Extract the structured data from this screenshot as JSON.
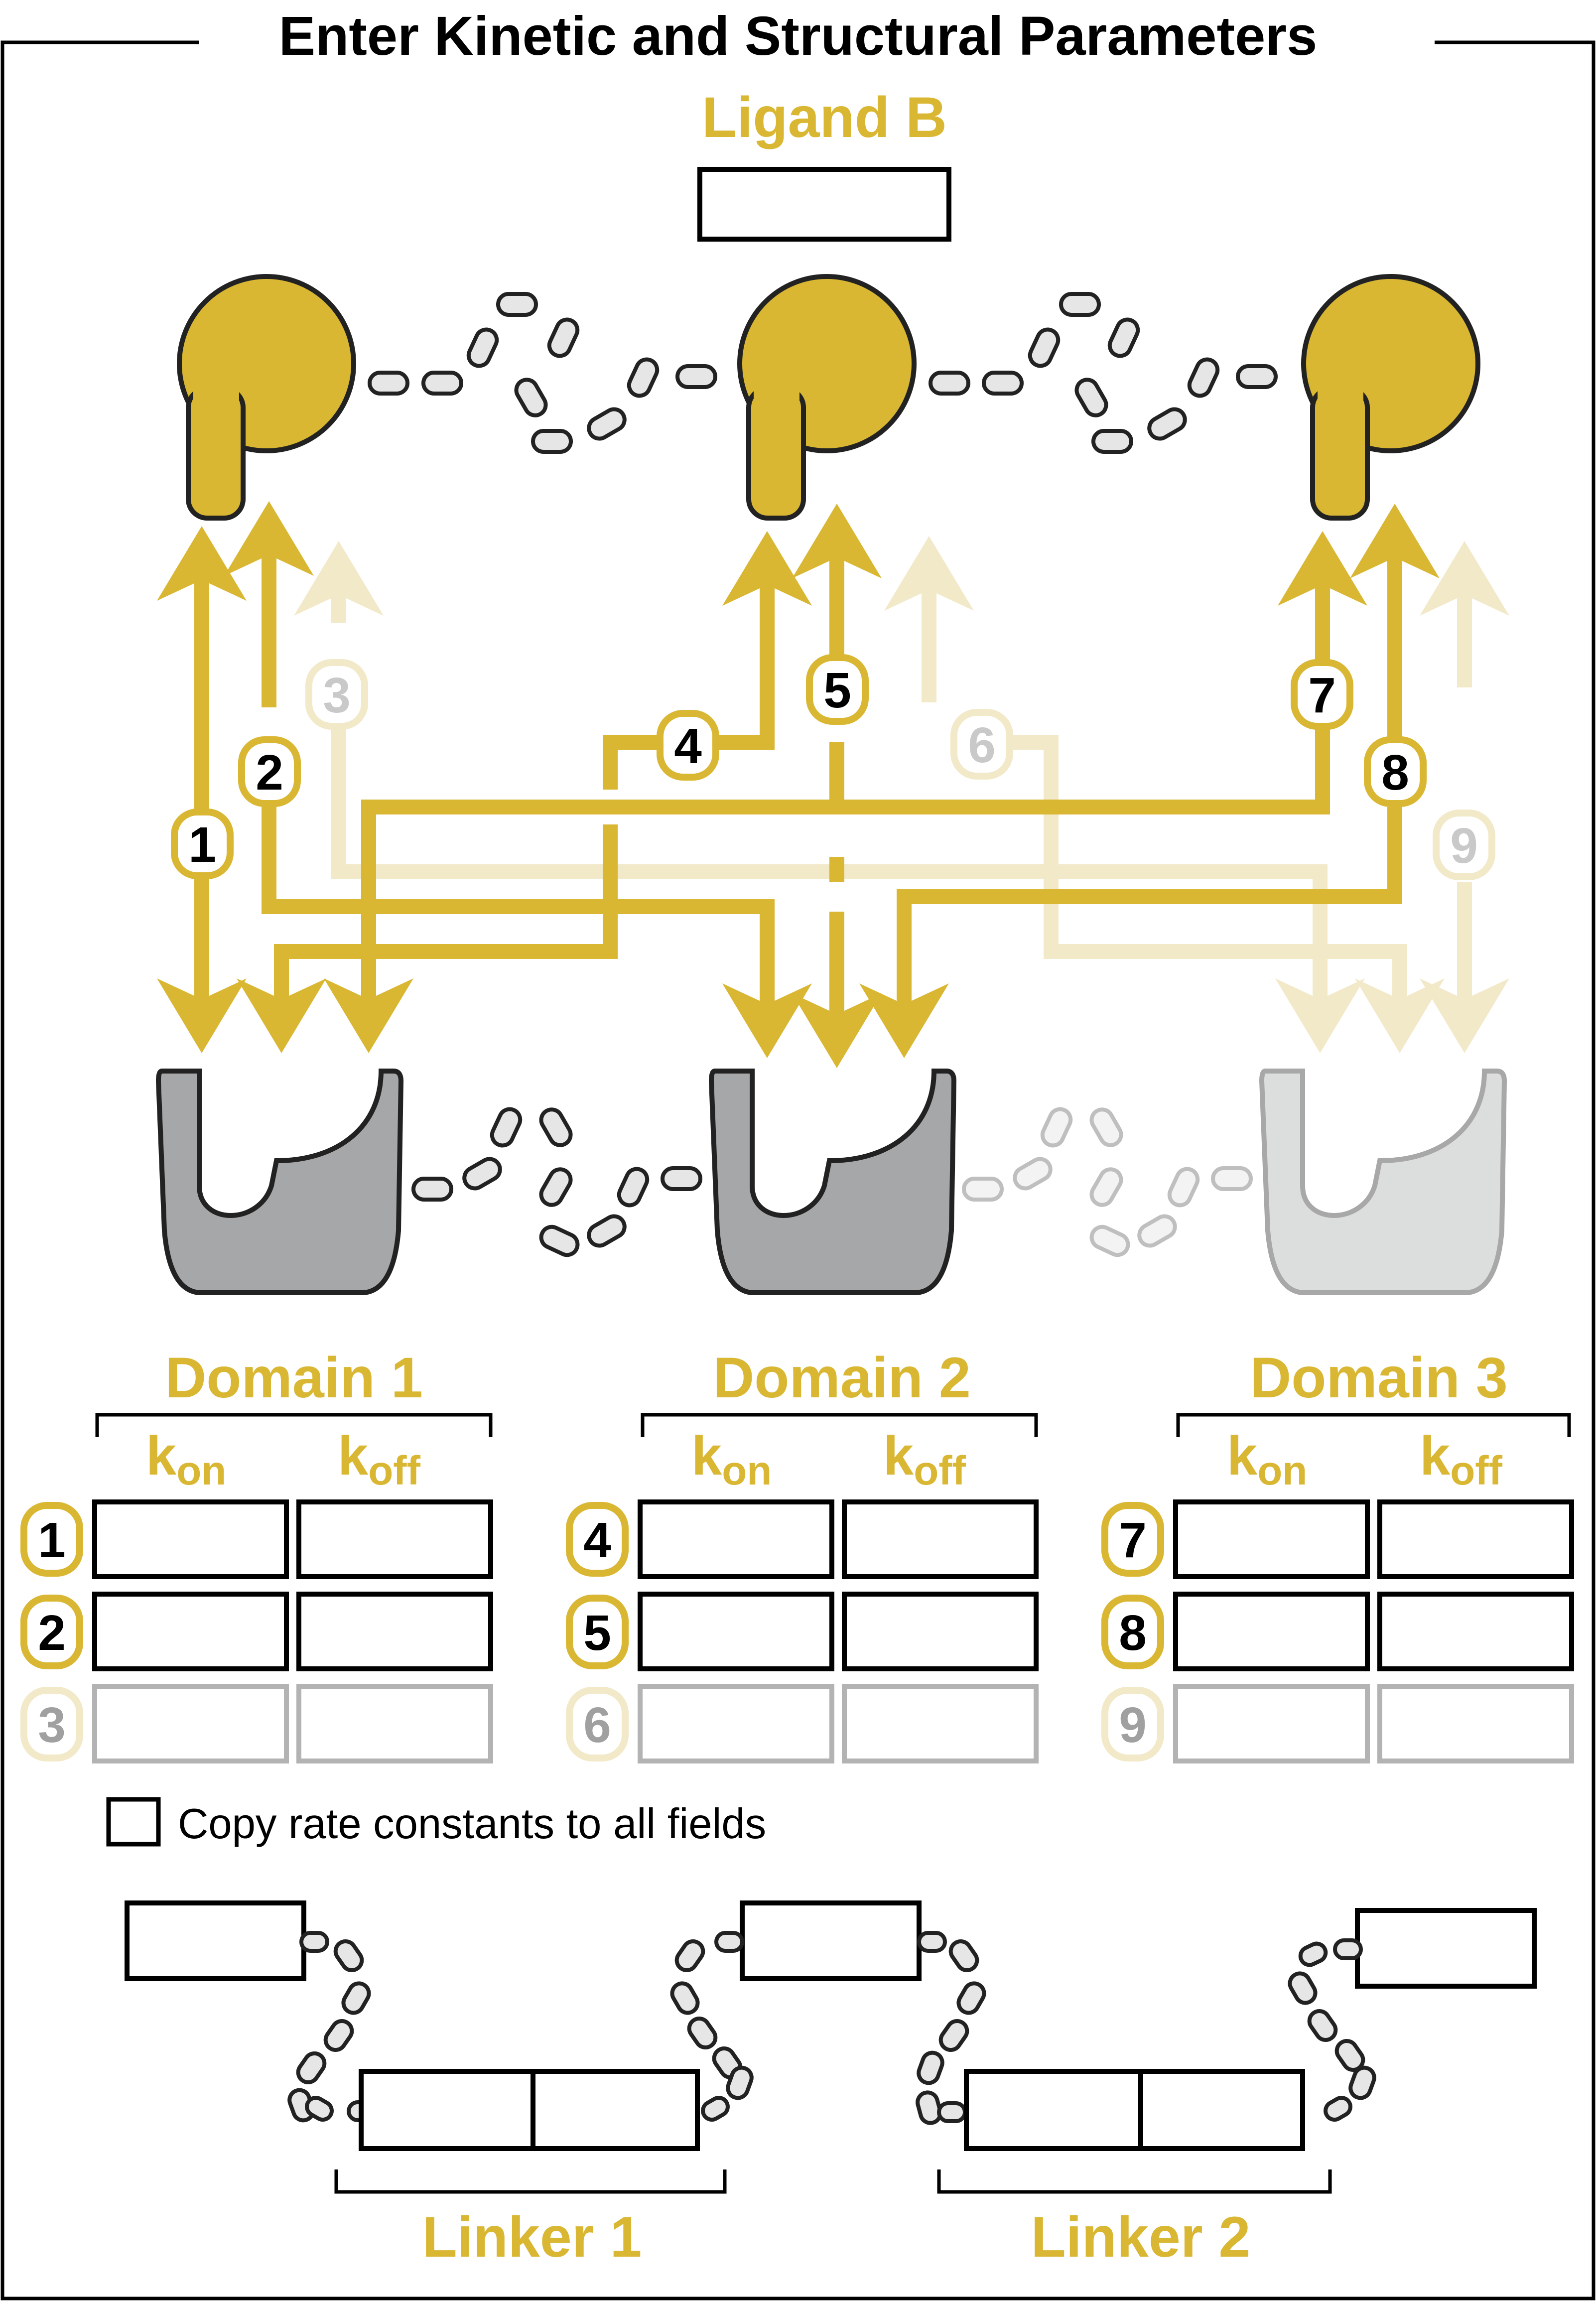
{
  "title": "Enter Kinetic and Structural Parameters",
  "ligand": {
    "label": "Ligand B",
    "input_value": ""
  },
  "domains": [
    {
      "label": "Domain 1",
      "kon_label": "k",
      "kon_sub": "on",
      "koff_label": "k",
      "koff_sub": "off",
      "rows": [
        {
          "id": "1",
          "kon": "",
          "koff": "",
          "active": true
        },
        {
          "id": "2",
          "kon": "",
          "koff": "",
          "active": true
        },
        {
          "id": "3",
          "kon": "",
          "koff": "",
          "active": false
        }
      ]
    },
    {
      "label": "Domain 2",
      "kon_label": "k",
      "kon_sub": "on",
      "koff_label": "k",
      "koff_sub": "off",
      "rows": [
        {
          "id": "4",
          "kon": "",
          "koff": "",
          "active": true
        },
        {
          "id": "5",
          "kon": "",
          "koff": "",
          "active": true
        },
        {
          "id": "6",
          "kon": "",
          "koff": "",
          "active": false
        }
      ]
    },
    {
      "label": "Domain 3",
      "kon_label": "k",
      "kon_sub": "on",
      "koff_label": "k",
      "koff_sub": "off",
      "rows": [
        {
          "id": "7",
          "kon": "",
          "koff": "",
          "active": true
        },
        {
          "id": "8",
          "kon": "",
          "koff": "",
          "active": true
        },
        {
          "id": "9",
          "kon": "",
          "koff": "",
          "active": false
        }
      ]
    }
  ],
  "copy_checkbox": {
    "label": "Copy rate constants to all fields",
    "checked": false
  },
  "linkers": [
    {
      "label": "Linker 1"
    },
    {
      "label": "Linker 2"
    }
  ],
  "arrow_labels": [
    "1",
    "2",
    "3",
    "4",
    "5",
    "6",
    "7",
    "8",
    "9"
  ],
  "colors": {
    "gold": "#d9b733",
    "gold_faded": "#f2e9c9",
    "domain_dark": "#a6a7a9",
    "domain_light": "#dcdddd",
    "linker": "#e6e6e6"
  }
}
